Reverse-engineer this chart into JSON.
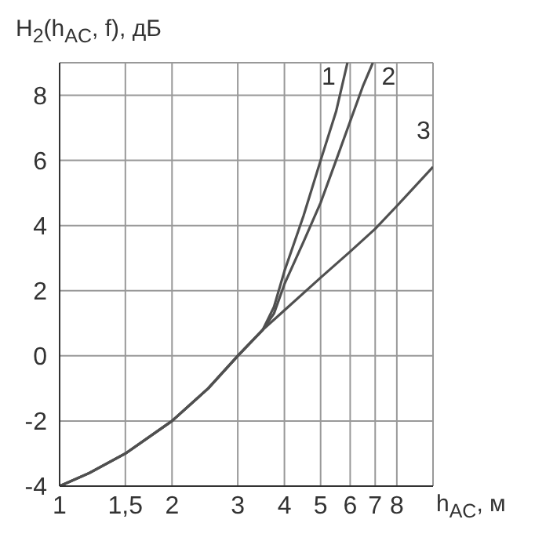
{
  "chart_data": {
    "type": "line",
    "ylabel": "H$_{2}$(h$_{AC}$, f), дБ",
    "xlabel": "h$_{AC}$, м",
    "log": "x",
    "xlim": [
      1,
      10
    ],
    "xticks": [
      1,
      {
        "value": 1.5,
        "label": "1,5"
      },
      2,
      3,
      4,
      5,
      6,
      7,
      8,
      {
        "value": 10,
        "label": null
      }
    ],
    "ylim": [
      -4,
      9
    ],
    "yticks": [
      -4,
      -2,
      0,
      2,
      4,
      6,
      8
    ],
    "grid": true,
    "marker": "none",
    "line_style": "solid",
    "series": [
      {
        "name": "1",
        "color": "#505050",
        "x": [
          1,
          1.2,
          1.5,
          2,
          2.5,
          3,
          3.5,
          3.75,
          4,
          4.5,
          5,
          5.5,
          5.9
        ],
        "values": [
          -4,
          -3.6,
          -3,
          -2,
          -1,
          0,
          0.8,
          1.5,
          2.6,
          4.3,
          6,
          7.5,
          9
        ]
      },
      {
        "name": "2",
        "color": "#505050",
        "x": [
          1,
          1.2,
          1.5,
          2,
          2.5,
          3,
          3.5,
          3.75,
          4,
          4.5,
          5,
          5.5,
          6,
          6.5,
          6.9
        ],
        "values": [
          -4,
          -3.6,
          -3,
          -2,
          -1,
          0,
          0.8,
          1.3,
          2.2,
          3.5,
          4.7,
          6,
          7.2,
          8.3,
          9
        ]
      },
      {
        "name": "3",
        "color": "#505050",
        "x": [
          1,
          1.2,
          1.5,
          2,
          2.5,
          3,
          3.5,
          4,
          5,
          6,
          7,
          8,
          10
        ],
        "values": [
          -4,
          -3.6,
          -3,
          -2,
          -1,
          0,
          0.8,
          1.4,
          2.4,
          3.2,
          3.9,
          4.6,
          5.8
        ]
      }
    ]
  }
}
